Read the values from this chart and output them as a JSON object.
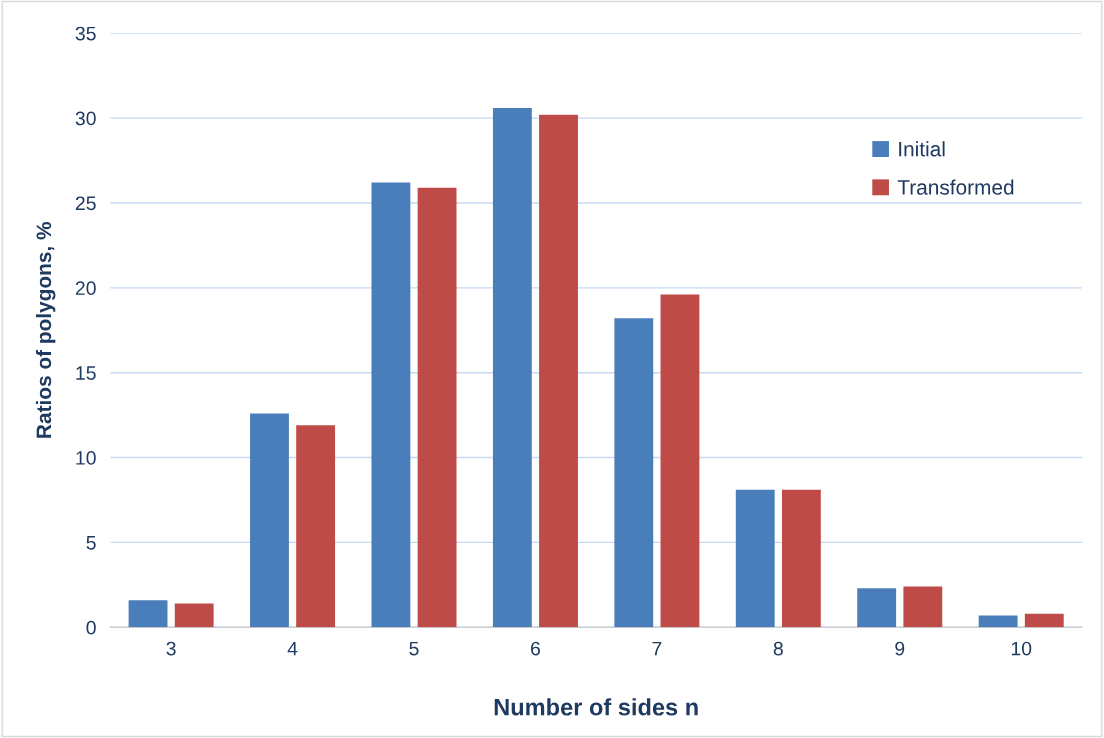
{
  "chart_data": {
    "type": "bar",
    "xlabel": "Number of sides n",
    "ylabel": "Ratios of polygons, %",
    "categories": [
      "3",
      "4",
      "5",
      "6",
      "7",
      "8",
      "9",
      "10"
    ],
    "series": [
      {
        "name": "Initial",
        "color": "#4a7ebb",
        "values": [
          1.6,
          12.6,
          26.2,
          30.6,
          18.2,
          8.1,
          2.3,
          0.7
        ]
      },
      {
        "name": "Transformed",
        "color": "#be4b48",
        "values": [
          1.4,
          11.9,
          25.9,
          30.2,
          19.6,
          8.1,
          2.4,
          0.8
        ]
      }
    ],
    "ylim": [
      0,
      35
    ],
    "yticks": [
      0,
      5,
      10,
      15,
      20,
      25,
      30,
      35
    ],
    "grid": "y",
    "legend": "top right"
  }
}
